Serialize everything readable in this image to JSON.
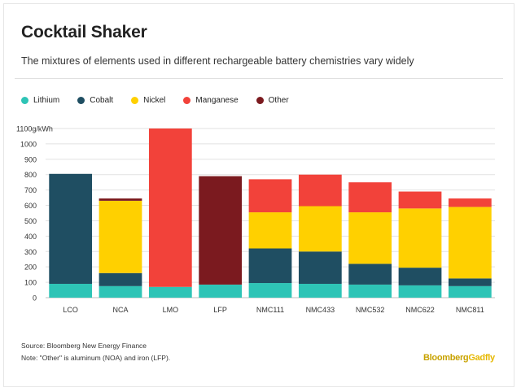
{
  "title": "Cocktail Shaker",
  "subtitle": "The mixtures of elements used in different rechargeable battery chemistries vary widely",
  "legend": [
    {
      "label": "Lithium",
      "color": "#2ec4b6"
    },
    {
      "label": "Cobalt",
      "color": "#1f4e62"
    },
    {
      "label": "Nickel",
      "color": "#ffd000"
    },
    {
      "label": "Manganese",
      "color": "#f2423a"
    },
    {
      "label": "Other",
      "color": "#7b1a1f"
    }
  ],
  "footer": {
    "source": "Source: Bloomberg New Energy Finance",
    "note": "Note: \"Other\" is aluminum (NOA) and iron (LFP).",
    "brand_part1": "Bloomberg",
    "brand_part2": "Gadfly"
  },
  "chart_data": {
    "type": "bar",
    "stacked": true,
    "title": "Cocktail Shaker",
    "subtitle": "The mixtures of elements used in different rechargeable battery chemistries vary widely",
    "unit_label": "1100g/kWh",
    "categories": [
      "LCO",
      "NCA",
      "LMO",
      "LFP",
      "NMC111",
      "NMC433",
      "NMC532",
      "NMC622",
      "NMC811"
    ],
    "yticks": [
      0,
      100,
      200,
      300,
      400,
      500,
      600,
      700,
      800,
      900,
      1000
    ],
    "ylim": [
      0,
      1100
    ],
    "grid": true,
    "legend_position": "top-left",
    "series": [
      {
        "name": "Lithium",
        "color": "#2ec4b6",
        "values": [
          90,
          75,
          70,
          85,
          95,
          90,
          85,
          80,
          75
        ]
      },
      {
        "name": "Cobalt",
        "color": "#1f4e62",
        "values": [
          715,
          85,
          0,
          0,
          225,
          210,
          135,
          115,
          50
        ]
      },
      {
        "name": "Nickel",
        "color": "#ffd000",
        "values": [
          0,
          470,
          0,
          0,
          235,
          295,
          335,
          385,
          465
        ]
      },
      {
        "name": "Manganese",
        "color": "#f2423a",
        "values": [
          0,
          0,
          1030,
          0,
          215,
          205,
          195,
          110,
          55
        ]
      },
      {
        "name": "Other",
        "color": "#7b1a1f",
        "values": [
          0,
          15,
          0,
          705,
          0,
          0,
          0,
          0,
          0
        ]
      }
    ]
  }
}
